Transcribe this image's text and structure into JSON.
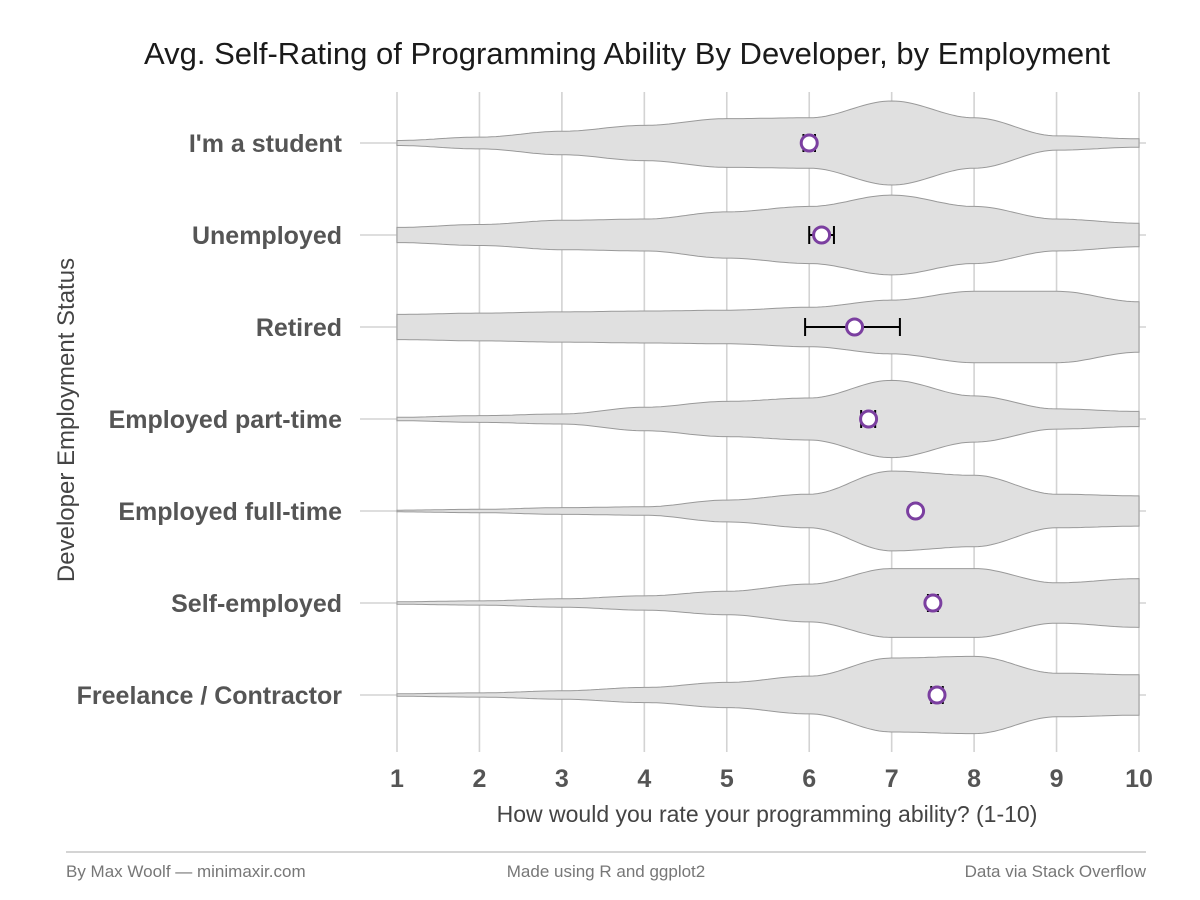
{
  "chart_data": {
    "type": "violin",
    "title": "Avg. Self-Rating of Programming Ability By Developer, by Employment",
    "xlabel": "How would you rate your programming ability? (1-10)",
    "ylabel": "Developer Employment Status",
    "xlim": [
      1,
      10
    ],
    "x_ticks": [
      "1",
      "2",
      "3",
      "4",
      "5",
      "6",
      "7",
      "8",
      "9",
      "10"
    ],
    "grid": true,
    "violin_color": "#e0e0e0",
    "violin_outline": "#999999",
    "point_color": "#7b3fa0",
    "errorbar_color": "#000000",
    "categories": [
      "I'm a student",
      "Unemployed",
      "Retired",
      "Employed part-time",
      "Employed full-time",
      "Self-employed",
      "Freelance / Contractor"
    ],
    "series": [
      {
        "category": "I'm a student",
        "mean": 6.0,
        "ci_low": 5.93,
        "ci_high": 6.07,
        "density": [
          0.06,
          0.14,
          0.28,
          0.42,
          0.58,
          0.6,
          1.0,
          0.6,
          0.17,
          0.1
        ]
      },
      {
        "category": "Unemployed",
        "mean": 6.15,
        "ci_low": 6.0,
        "ci_high": 6.3,
        "density": [
          0.18,
          0.25,
          0.35,
          0.38,
          0.55,
          0.68,
          0.95,
          0.68,
          0.38,
          0.28
        ]
      },
      {
        "category": "Retired",
        "mean": 6.55,
        "ci_low": 5.95,
        "ci_high": 7.1,
        "density": [
          0.3,
          0.33,
          0.36,
          0.38,
          0.4,
          0.47,
          0.64,
          0.85,
          0.85,
          0.6
        ]
      },
      {
        "category": "Employed part-time",
        "mean": 6.72,
        "ci_low": 6.63,
        "ci_high": 6.8,
        "density": [
          0.04,
          0.08,
          0.12,
          0.28,
          0.42,
          0.5,
          0.92,
          0.55,
          0.24,
          0.18
        ]
      },
      {
        "category": "Employed full-time",
        "mean": 7.29,
        "ci_low": 7.26,
        "ci_high": 7.32,
        "density": [
          0.02,
          0.04,
          0.08,
          0.1,
          0.26,
          0.4,
          0.95,
          0.85,
          0.4,
          0.36
        ]
      },
      {
        "category": "Self-employed",
        "mean": 7.5,
        "ci_low": 7.44,
        "ci_high": 7.56,
        "density": [
          0.03,
          0.05,
          0.1,
          0.17,
          0.28,
          0.45,
          0.82,
          0.82,
          0.48,
          0.58
        ]
      },
      {
        "category": "Freelance / Contractor",
        "mean": 7.55,
        "ci_low": 7.48,
        "ci_high": 7.62,
        "density": [
          0.03,
          0.05,
          0.1,
          0.18,
          0.3,
          0.45,
          0.88,
          0.92,
          0.52,
          0.48
        ]
      }
    ]
  },
  "footer": {
    "left": "By Max Woolf — minimaxir.com",
    "center": "Made using R and ggplot2",
    "right": "Data via Stack Overflow"
  }
}
